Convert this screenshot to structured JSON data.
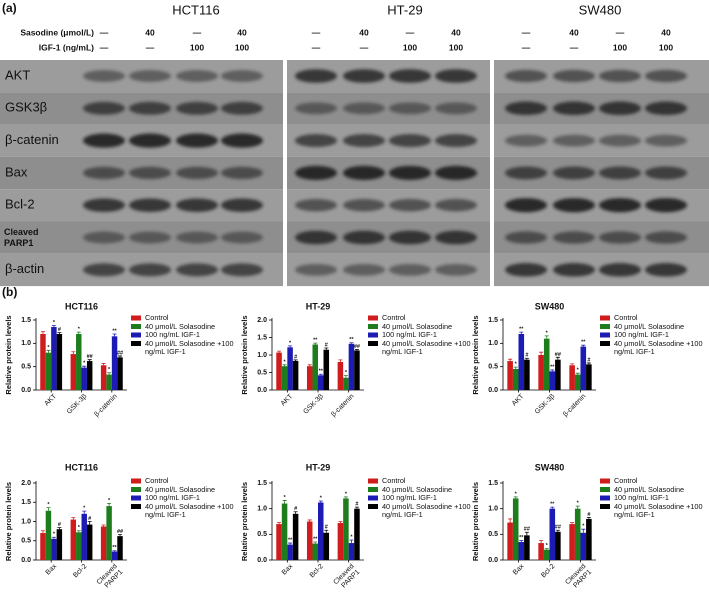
{
  "panel_a": {
    "label": "(a)",
    "row_labels": [
      "Sasodine (μmol/L)",
      "IGF-1 (ng/mL)"
    ],
    "groups": [
      {
        "name": "HCT116",
        "sasodine": [
          "—",
          "40",
          "—",
          "40"
        ],
        "igf": [
          "—",
          "—",
          "100",
          "100"
        ]
      },
      {
        "name": "HT-29",
        "sasodine": [
          "—",
          "40",
          "—",
          "40"
        ],
        "igf": [
          "—",
          "—",
          "100",
          "100"
        ]
      },
      {
        "name": "SW480",
        "sasodine": [
          "—",
          "40",
          "—",
          "40"
        ],
        "igf": [
          "—",
          "—",
          "100",
          "100"
        ]
      }
    ],
    "proteins": [
      "AKT",
      "GSK3β",
      "β-catenin",
      "Bax",
      "Bcl-2",
      "Cleaved PARP1",
      "β-actin"
    ]
  },
  "panel_b": {
    "label": "(b)"
  },
  "chart_data": [
    {
      "type": "bar",
      "title": "HCT116",
      "y_label": "Relative protein levels",
      "categories": [
        "AKT",
        "GSK-3β",
        "β-catenin"
      ],
      "ylim": [
        0,
        1.5
      ],
      "yticks": [
        {
          "value": 0,
          "label": "0.0"
        },
        {
          "value": 0.5,
          "label": "0.5"
        },
        {
          "value": 1,
          "label": "1.0"
        },
        {
          "value": 1.5,
          "label": "1.5"
        }
      ],
      "legend": "right",
      "series": [
        {
          "name": "Control",
          "color": "#d01c1c",
          "values": [
            1.2,
            0.77,
            0.53
          ],
          "errors": [
            0.05,
            0.05,
            0.04
          ],
          "annotations": [
            null,
            null,
            null
          ]
        },
        {
          "name": "40 μmol/L Solasodine",
          "color": "#1d7d1d",
          "values": [
            0.8,
            1.2,
            0.33
          ],
          "errors": [
            0.05,
            0.04,
            0.04
          ],
          "annotations": [
            "*",
            "*",
            "*"
          ]
        },
        {
          "name": "100 ng/mL IGF-1",
          "color": "#1c1cb4",
          "values": [
            1.35,
            0.48,
            1.15
          ],
          "errors": [
            0.03,
            0.03,
            0.05
          ],
          "annotations": [
            "*",
            "*",
            "**"
          ]
        },
        {
          "name": "40 μmol/L Solasodine +100 ng/mL IGF-1",
          "color": "#000000",
          "values": [
            1.2,
            0.62,
            0.7
          ],
          "errors": [
            0.03,
            0.03,
            0.03
          ],
          "annotations": [
            "#",
            "##",
            "##"
          ]
        }
      ]
    },
    {
      "type": "bar",
      "title": "HT-29",
      "y_label": "Relative protein levels",
      "categories": [
        "AKT",
        "GSK-3β",
        "β-catenin"
      ],
      "ylim": [
        0,
        2
      ],
      "yticks": [
        {
          "value": 0,
          "label": "0.0"
        },
        {
          "value": 0.5,
          "label": "0.5"
        },
        {
          "value": 1,
          "label": "1.0"
        },
        {
          "value": 1.5,
          "label": "1.5"
        },
        {
          "value": 2,
          "label": "2.0"
        }
      ],
      "legend": "right",
      "series": [
        {
          "name": "Control",
          "color": "#d01c1c",
          "values": [
            1.07,
            0.68,
            0.8
          ],
          "errors": [
            0.04,
            0.04,
            0.06
          ],
          "annotations": [
            null,
            null,
            null
          ]
        },
        {
          "name": "40 μmol/L Solasodine",
          "color": "#1d7d1d",
          "values": [
            0.68,
            1.3,
            0.35
          ],
          "errors": [
            0.04,
            0.04,
            0.06
          ],
          "annotations": [
            "*",
            "**",
            "*"
          ]
        },
        {
          "name": "100 ng/mL IGF-1",
          "color": "#1c1cb4",
          "values": [
            1.22,
            0.42,
            1.32
          ],
          "errors": [
            0.04,
            0.03,
            0.03
          ],
          "annotations": [
            "*",
            "**",
            "**"
          ]
        },
        {
          "name": "40 μmol/L Solasodine +100 ng/mL IGF-1",
          "color": "#000000",
          "values": [
            0.83,
            1.15,
            1.13
          ],
          "errors": [
            0.03,
            0.05,
            0.03
          ],
          "annotations": [
            "#",
            "#",
            "##"
          ]
        }
      ]
    },
    {
      "type": "bar",
      "title": "SW480",
      "y_label": "Relative protein levels",
      "categories": [
        "AKT",
        "GSK-3β",
        "β-catenin"
      ],
      "ylim": [
        0,
        1.5
      ],
      "yticks": [
        {
          "value": 0,
          "label": "0.0"
        },
        {
          "value": 0.5,
          "label": "0.5"
        },
        {
          "value": 1,
          "label": "1.0"
        },
        {
          "value": 1.5,
          "label": "1.5"
        }
      ],
      "legend": "right",
      "series": [
        {
          "name": "Control",
          "color": "#d01c1c",
          "values": [
            0.62,
            0.75,
            0.53
          ],
          "errors": [
            0.04,
            0.06,
            0.03
          ],
          "annotations": [
            null,
            null,
            null
          ]
        },
        {
          "name": "40 μmol/L Solasodine",
          "color": "#1d7d1d",
          "values": [
            0.45,
            1.1,
            0.33
          ],
          "errors": [
            0.04,
            0.06,
            0.03
          ],
          "annotations": [
            "*",
            "*",
            "*"
          ]
        },
        {
          "name": "100 ng/mL IGF-1",
          "color": "#1c1cb4",
          "values": [
            1.2,
            0.4,
            0.93
          ],
          "errors": [
            0.04,
            0.03,
            0.03
          ],
          "annotations": [
            "**",
            "**",
            "**"
          ]
        },
        {
          "name": "40 μmol/L Solasodine +100 ng/mL IGF-1",
          "color": "#000000",
          "values": [
            0.65,
            0.65,
            0.55
          ],
          "errors": [
            0.03,
            0.05,
            0.03
          ],
          "annotations": [
            "#",
            "##",
            "#"
          ]
        }
      ]
    },
    {
      "type": "bar",
      "title": "HCT116",
      "y_label": "Relative protein levels",
      "categories": [
        "Bax",
        "Bcl-2",
        "Cleaved PARP1"
      ],
      "ylim": [
        0,
        2
      ],
      "yticks": [
        {
          "value": 0,
          "label": "0.0"
        },
        {
          "value": 0.5,
          "label": "0.5"
        },
        {
          "value": 1,
          "label": "1.0"
        },
        {
          "value": 1.5,
          "label": "1.5"
        },
        {
          "value": 2,
          "label": "2.0"
        }
      ],
      "legend": "right",
      "series": [
        {
          "name": "Control",
          "color": "#d01c1c",
          "values": [
            0.7,
            1.05,
            0.87
          ],
          "errors": [
            0.06,
            0.05,
            0.04
          ],
          "annotations": [
            null,
            null,
            null
          ]
        },
        {
          "name": "40 μmol/L Solasodine",
          "color": "#1d7d1d",
          "values": [
            1.28,
            0.72,
            1.4
          ],
          "errors": [
            0.08,
            0.04,
            0.07
          ],
          "annotations": [
            "*",
            "*",
            "*"
          ]
        },
        {
          "name": "100 ng/mL IGF-1",
          "color": "#1c1cb4",
          "values": [
            0.55,
            1.2,
            0.22
          ],
          "errors": [
            0.04,
            0.07,
            0.02
          ],
          "annotations": [
            "*",
            "*",
            "**"
          ]
        },
        {
          "name": "40 μmol/L Solasodine +100 ng/mL IGF-1",
          "color": "#000000",
          "values": [
            0.8,
            0.92,
            0.62
          ],
          "errors": [
            0.04,
            0.08,
            0.04
          ],
          "annotations": [
            "#",
            "#",
            "##"
          ]
        }
      ]
    },
    {
      "type": "bar",
      "title": "HT-29",
      "y_label": "Relative protein levels",
      "categories": [
        "Bax",
        "Bcl-2",
        "Cleaved PARP1"
      ],
      "ylim": [
        0,
        1.5
      ],
      "yticks": [
        {
          "value": 0,
          "label": "0.0"
        },
        {
          "value": 0.5,
          "label": "0.5"
        },
        {
          "value": 1,
          "label": "1.0"
        },
        {
          "value": 1.5,
          "label": "1.5"
        }
      ],
      "legend": "right",
      "series": [
        {
          "name": "Control",
          "color": "#d01c1c",
          "values": [
            0.7,
            0.75,
            0.72
          ],
          "errors": [
            0.03,
            0.03,
            0.03
          ],
          "annotations": [
            null,
            null,
            null
          ]
        },
        {
          "name": "40 μmol/L Solasodine",
          "color": "#1d7d1d",
          "values": [
            1.1,
            0.32,
            1.2
          ],
          "errors": [
            0.06,
            0.03,
            0.03
          ],
          "annotations": [
            "*",
            "**",
            "*"
          ]
        },
        {
          "name": "100 ng/mL IGF-1",
          "color": "#1c1cb4",
          "values": [
            0.3,
            1.12,
            0.33
          ],
          "errors": [
            0.03,
            0.03,
            0.06
          ],
          "annotations": [
            "**",
            "*",
            "*"
          ]
        },
        {
          "name": "40 μmol/L Solasodine +100 ng/mL IGF-1",
          "color": "#000000",
          "values": [
            0.9,
            0.53,
            1.0
          ],
          "errors": [
            0.04,
            0.05,
            0.03
          ],
          "annotations": [
            "#",
            "#",
            "#"
          ]
        }
      ]
    },
    {
      "type": "bar",
      "title": "SW480",
      "y_label": "Relative protein levels",
      "categories": [
        "Bax",
        "Bcl-2",
        "Cleaved PARP1"
      ],
      "ylim": [
        0,
        1.5
      ],
      "yticks": [
        {
          "value": 0,
          "label": "0.0"
        },
        {
          "value": 0.5,
          "label": "0.5"
        },
        {
          "value": 1,
          "label": "1.0"
        },
        {
          "value": 1.5,
          "label": "1.5"
        }
      ],
      "legend": "right",
      "series": [
        {
          "name": "Control",
          "color": "#d01c1c",
          "values": [
            0.73,
            0.33,
            0.7
          ],
          "errors": [
            0.07,
            0.05,
            0.03
          ],
          "annotations": [
            null,
            null,
            null
          ]
        },
        {
          "name": "40 μmol/L Solasodine",
          "color": "#1d7d1d",
          "values": [
            1.2,
            0.2,
            1.0
          ],
          "errors": [
            0.03,
            0.02,
            0.05
          ],
          "annotations": [
            "*",
            "*",
            "*"
          ]
        },
        {
          "name": "100 ng/mL IGF-1",
          "color": "#1c1cb4",
          "values": [
            0.35,
            1.0,
            0.53
          ],
          "errors": [
            0.03,
            0.03,
            0.07
          ],
          "annotations": [
            "**",
            "**",
            "*"
          ]
        },
        {
          "name": "40 μmol/L Solasodine +100 ng/mL IGF-1",
          "color": "#000000",
          "values": [
            0.48,
            0.55,
            0.8
          ],
          "errors": [
            0.06,
            0.03,
            0.03
          ],
          "annotations": [
            "##",
            "##",
            "#"
          ]
        }
      ]
    }
  ]
}
